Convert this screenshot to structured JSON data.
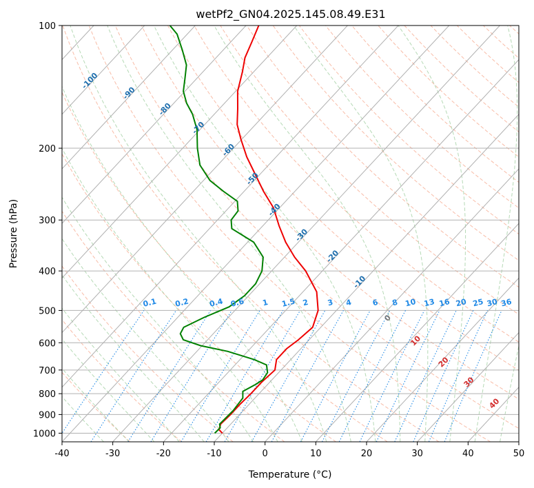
{
  "chart_data": {
    "type": "line",
    "title": "wetPf2_GN04.2025.145.08.49.E31",
    "xlabel": "Temperature (°C)",
    "ylabel": "Pressure (hPa)",
    "xlim": [
      -40,
      50
    ],
    "ylim": [
      1050,
      100
    ],
    "y_scale": "log",
    "x_ticks": [
      -40,
      -30,
      -20,
      -10,
      0,
      10,
      20,
      30,
      40,
      50
    ],
    "y_ticks": [
      100,
      200,
      300,
      400,
      500,
      600,
      700,
      800,
      900,
      1000
    ],
    "grid": true,
    "skew_t": true,
    "isotherm_labels": [
      "-100",
      "-90",
      "-80",
      "-70",
      "-60",
      "-50",
      "-40",
      "-30",
      "-20",
      "-10"
    ],
    "mixing_ratio_labels": [
      "0.1",
      "0.2",
      "0.4",
      "0.6",
      "1",
      "1.5",
      "2",
      "3",
      "4",
      "6",
      "8",
      "10",
      "13",
      "16",
      "20",
      "25",
      "30",
      "36"
    ],
    "moist_adiabat_labels": [
      "0",
      "10",
      "20",
      "30",
      "40"
    ],
    "colors": {
      "temperature": "#ee0000",
      "dewpoint": "#008000",
      "isotherm_label": "#1f6fae",
      "mixing_ratio": "#1e88e5",
      "moist_adiabat_label": "#d32f2f",
      "zero_label": "#777777",
      "grid": "#b0b0b0"
    },
    "series": [
      {
        "key": "temperature",
        "values": [
          [
            1000,
            -10.0
          ],
          [
            980,
            -11.3
          ],
          [
            950,
            -12.0
          ],
          [
            900,
            -11.8
          ],
          [
            850,
            -11.8
          ],
          [
            800,
            -11.6
          ],
          [
            750,
            -11.6
          ],
          [
            700,
            -11.2
          ],
          [
            660,
            -12.8
          ],
          [
            620,
            -12.8
          ],
          [
            590,
            -12.1
          ],
          [
            550,
            -11.6
          ],
          [
            500,
            -13.6
          ],
          [
            450,
            -17.3
          ],
          [
            400,
            -23.3
          ],
          [
            370,
            -28.0
          ],
          [
            340,
            -32.5
          ],
          [
            310,
            -36.8
          ],
          [
            280,
            -41.2
          ],
          [
            255,
            -46.2
          ],
          [
            230,
            -51.3
          ],
          [
            210,
            -55.8
          ],
          [
            190,
            -60.2
          ],
          [
            175,
            -63.6
          ],
          [
            160,
            -66.4
          ],
          [
            145,
            -69.6
          ],
          [
            130,
            -72.2
          ],
          [
            120,
            -74.3
          ],
          [
            110,
            -75.8
          ],
          [
            100,
            -77.5
          ]
        ]
      },
      {
        "key": "dewpoint",
        "values": [
          [
            1000,
            -11.5
          ],
          [
            970,
            -11.4
          ],
          [
            950,
            -12.2
          ],
          [
            920,
            -12.1
          ],
          [
            880,
            -12.0
          ],
          [
            850,
            -12.2
          ],
          [
            820,
            -12.4
          ],
          [
            790,
            -13.6
          ],
          [
            760,
            -12.4
          ],
          [
            740,
            -11.8
          ],
          [
            710,
            -12.2
          ],
          [
            680,
            -13.8
          ],
          [
            660,
            -17.2
          ],
          [
            630,
            -23.9
          ],
          [
            610,
            -30.3
          ],
          [
            590,
            -34.8
          ],
          [
            570,
            -36.5
          ],
          [
            550,
            -37.0
          ],
          [
            520,
            -34.8
          ],
          [
            490,
            -31.8
          ],
          [
            460,
            -30.8
          ],
          [
            430,
            -30.8
          ],
          [
            400,
            -31.9
          ],
          [
            370,
            -34.2
          ],
          [
            340,
            -38.8
          ],
          [
            315,
            -45.6
          ],
          [
            300,
            -47.3
          ],
          [
            285,
            -47.6
          ],
          [
            270,
            -49.5
          ],
          [
            255,
            -54.1
          ],
          [
            240,
            -58.7
          ],
          [
            220,
            -63.5
          ],
          [
            200,
            -67.1
          ],
          [
            180,
            -70.6
          ],
          [
            165,
            -74.3
          ],
          [
            155,
            -77.5
          ],
          [
            145,
            -80.3
          ],
          [
            135,
            -82.3
          ],
          [
            125,
            -84.5
          ],
          [
            115,
            -88.0
          ],
          [
            105,
            -92.0
          ],
          [
            100,
            -95.0
          ]
        ]
      }
    ]
  }
}
